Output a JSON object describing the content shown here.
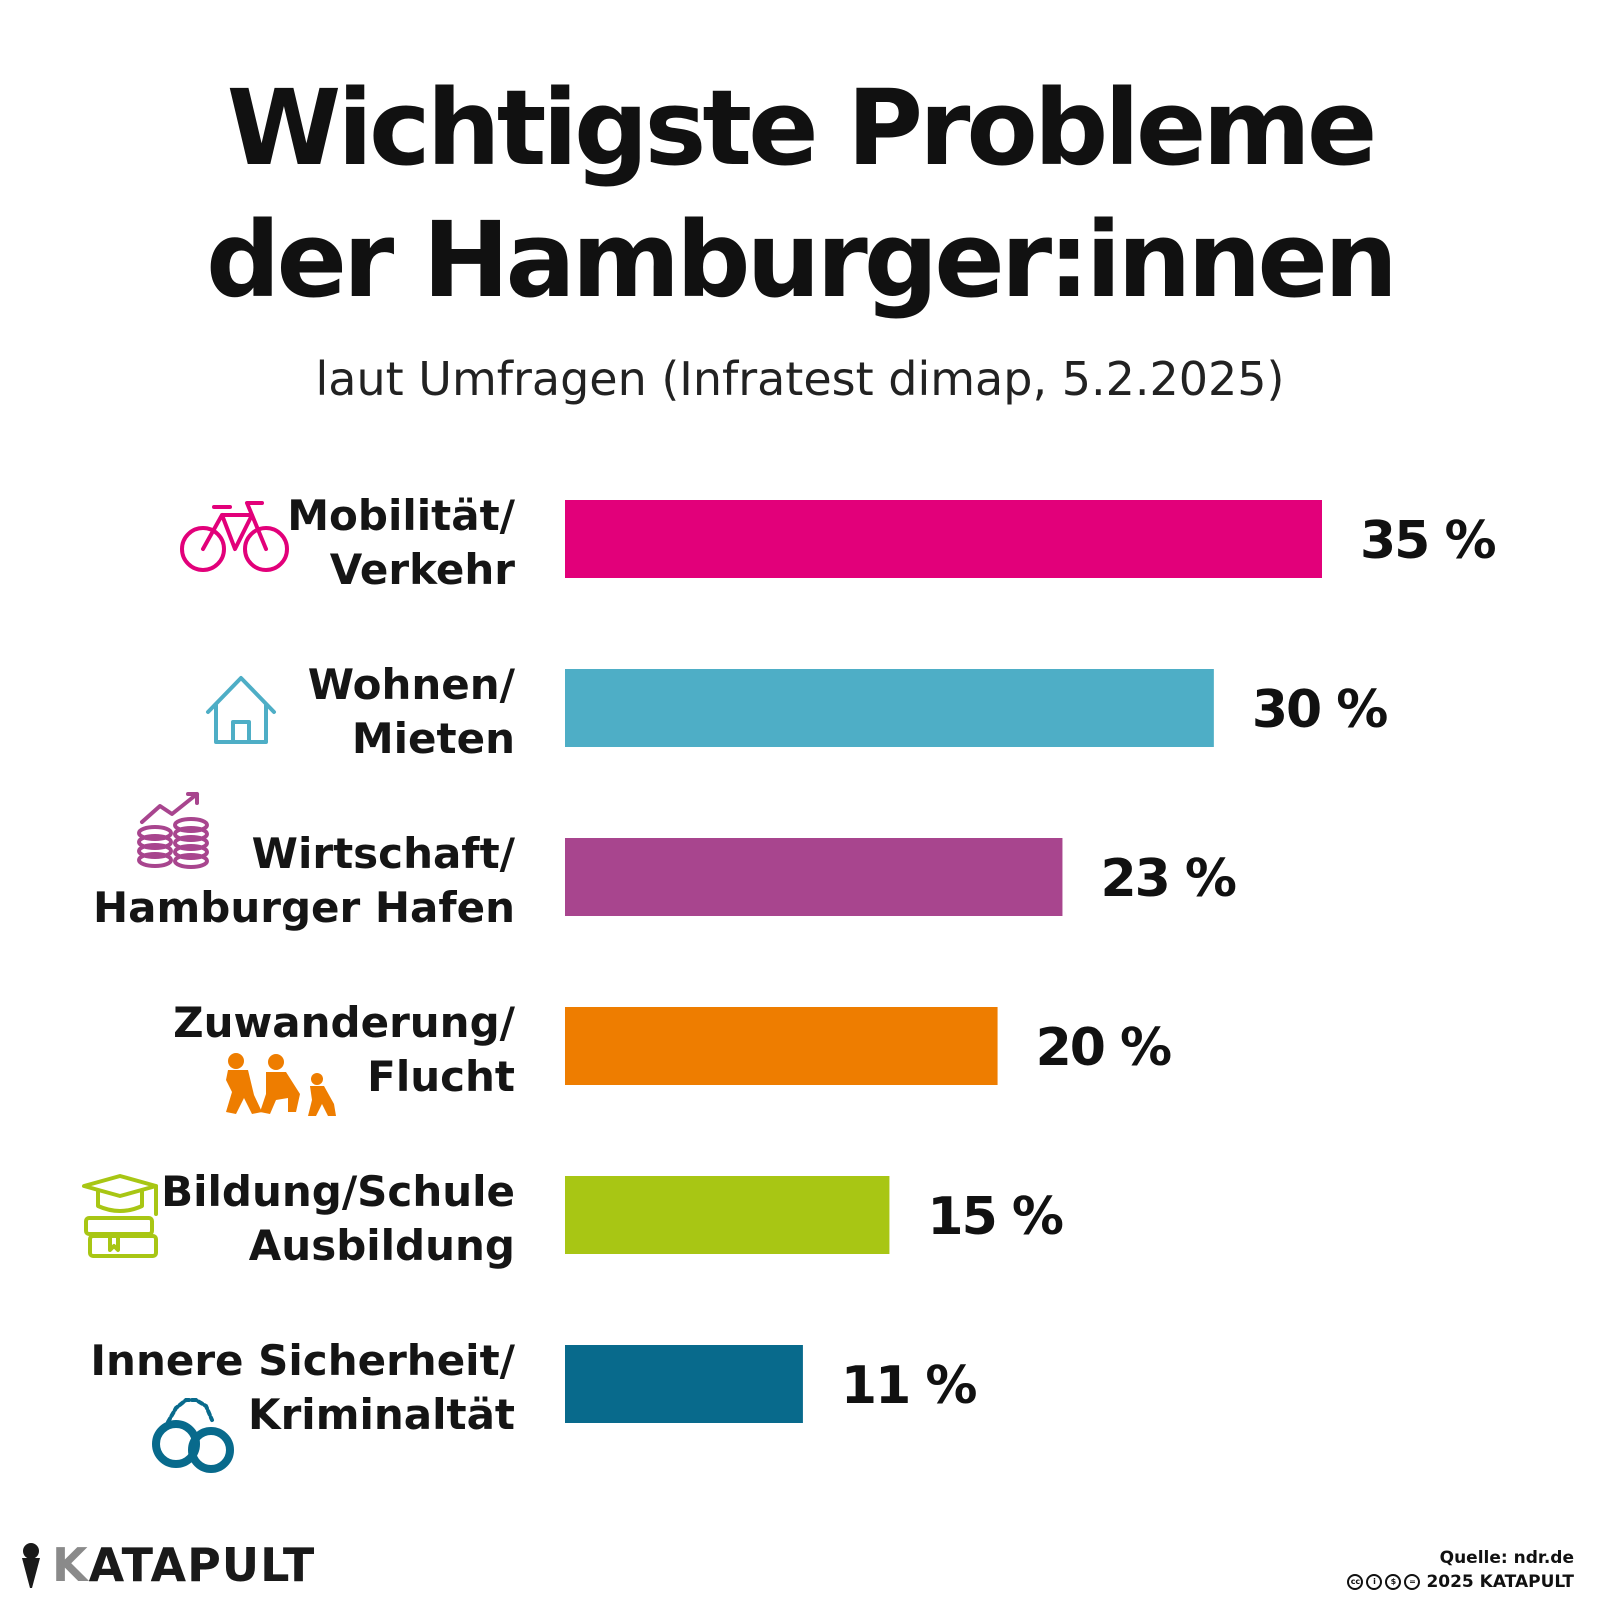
{
  "title_lines": [
    "Wichtigste Probleme",
    "der Hamburger:innen"
  ],
  "subtitle": "laut Umfragen (Infratest dimap, 5.2.2025)",
  "chart_data": {
    "type": "bar",
    "orientation": "horizontal",
    "title": "Wichtigste Probleme der Hamburger:innen",
    "subtitle": "laut Umfragen (Infratest dimap, 5.2.2025)",
    "unit": "%",
    "categories": [
      [
        "Mobilität/",
        "Verkehr"
      ],
      [
        "Wohnen/",
        "Mieten"
      ],
      [
        "Wirtschaft/",
        "Hamburger Hafen"
      ],
      [
        "Zuwanderung/",
        "Flucht"
      ],
      [
        "Bildung/Schule",
        "Ausbildung"
      ],
      [
        "Innere Sicherheit/",
        "Kriminaltät"
      ]
    ],
    "values": [
      35,
      30,
      23,
      20,
      15,
      11
    ],
    "value_labels": [
      "35 %",
      "30 %",
      "23 %",
      "20 %",
      "15 %",
      "11 %"
    ],
    "colors": [
      "#e2007a",
      "#4eaec6",
      "#a8458e",
      "#ee7d00",
      "#a8c614",
      "#086a8c"
    ],
    "icons": [
      "bicycle-icon",
      "house-icon",
      "coins-chart-icon",
      "refugees-icon",
      "books-graduation-cap-icon",
      "handcuffs-icon"
    ],
    "xlabel": "",
    "ylabel": "",
    "xlim": [
      0,
      35
    ],
    "grid": false,
    "legend": "none"
  },
  "logo": {
    "k": "K",
    "rest": "ATAPULT"
  },
  "footer": {
    "source": "Quelle: ndr.de",
    "copyright": "2025 KATAPULT",
    "cc_glyphs": [
      "cc",
      "i",
      "$",
      "="
    ]
  }
}
